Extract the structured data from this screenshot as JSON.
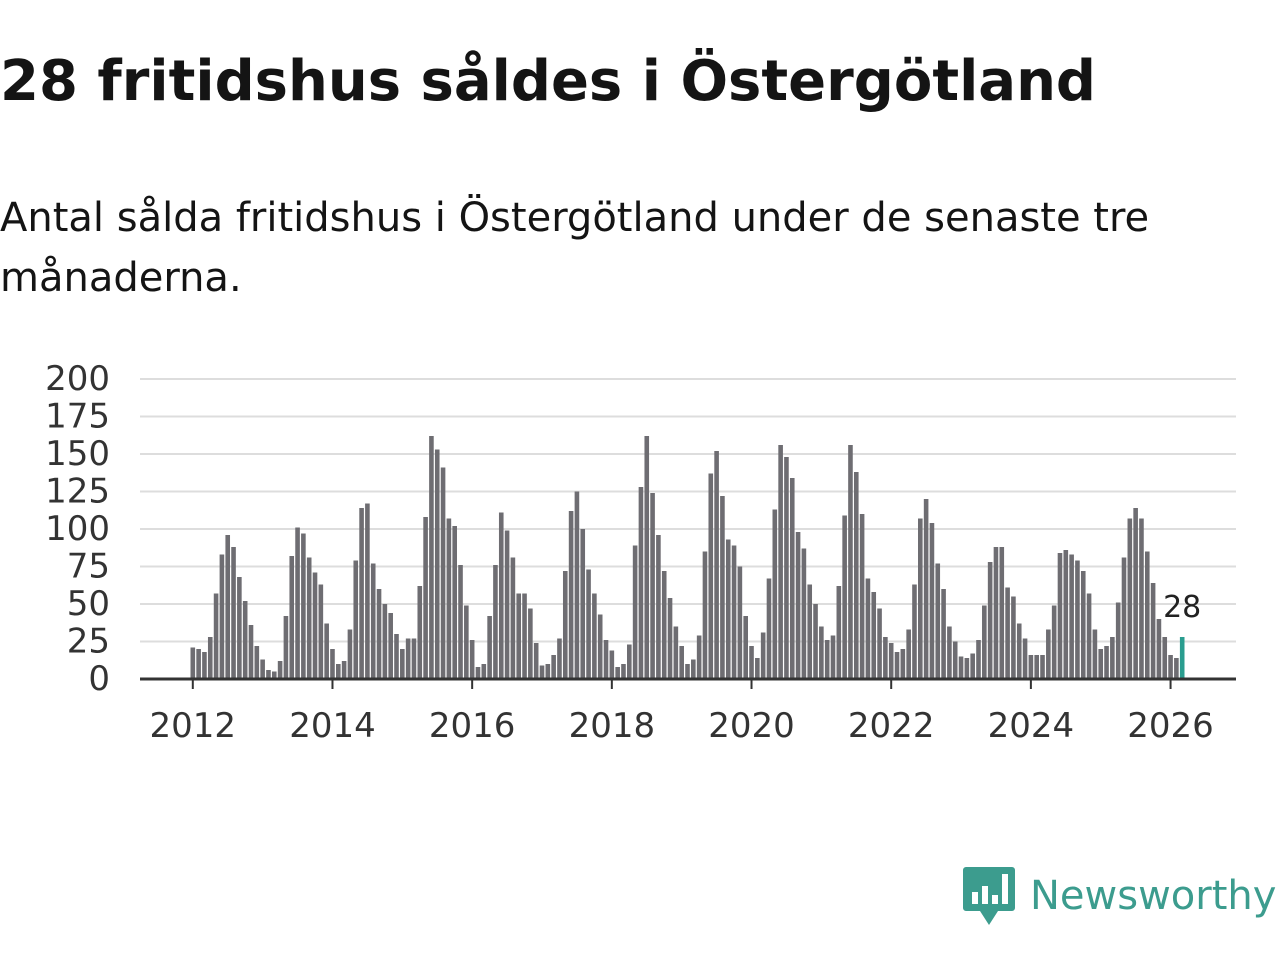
{
  "title": "28 fritidshus såldes i Östergötland",
  "subtitle": "Antal sålda fritidshus i Östergötland under de senaste tre månaderna.",
  "brand": {
    "name": "Newsworthy",
    "icon": "newsworthy-logo-icon",
    "color": "#3c9c8e"
  },
  "chart_data": {
    "type": "bar",
    "title": "28 fritidshus såldes i Östergötland",
    "xlabel": "",
    "ylabel": "",
    "ylim": [
      0,
      200
    ],
    "yticks": [
      0,
      25,
      50,
      75,
      100,
      125,
      150,
      175,
      200
    ],
    "ytick_labels": [
      "0",
      "25",
      "50",
      "75",
      "100",
      "125",
      "150",
      "175",
      "200"
    ],
    "xticks": [
      2012,
      2014,
      2016,
      2018,
      2020,
      2022,
      2024,
      2026
    ],
    "xtick_labels": [
      "2012",
      "2014",
      "2016",
      "2018",
      "2020",
      "2022",
      "2024",
      "2026"
    ],
    "grid": true,
    "first_period": "2012-01",
    "last_period": "2026-03",
    "bar_color": "#6e6d72",
    "highlight_color": "#2a9d8f",
    "highlight_index": 170,
    "annotation": {
      "index": 170,
      "label": "28"
    },
    "values": [
      21,
      20,
      18,
      28,
      57,
      83,
      96,
      88,
      68,
      52,
      36,
      22,
      13,
      6,
      5,
      12,
      42,
      82,
      101,
      97,
      81,
      71,
      63,
      37,
      20,
      10,
      12,
      33,
      79,
      114,
      117,
      77,
      60,
      50,
      44,
      30,
      20,
      27,
      27,
      62,
      108,
      162,
      153,
      141,
      107,
      102,
      76,
      49,
      26,
      8,
      10,
      42,
      76,
      111,
      99,
      81,
      57,
      57,
      47,
      24,
      9,
      10,
      16,
      27,
      72,
      112,
      125,
      100,
      73,
      57,
      43,
      26,
      19,
      8,
      10,
      23,
      89,
      128,
      162,
      124,
      96,
      72,
      54,
      35,
      22,
      10,
      13,
      29,
      85,
      137,
      152,
      122,
      93,
      89,
      75,
      42,
      22,
      14,
      31,
      67,
      113,
      156,
      148,
      134,
      98,
      87,
      63,
      50,
      35,
      26,
      29,
      62,
      109,
      156,
      138,
      110,
      67,
      58,
      47,
      28,
      24,
      18,
      20,
      33,
      63,
      107,
      120,
      104,
      77,
      60,
      35,
      25,
      15,
      14,
      17,
      26,
      49,
      78,
      88,
      88,
      61,
      55,
      37,
      27,
      16,
      16,
      16,
      33,
      49,
      84,
      86,
      83,
      79,
      72,
      57,
      33,
      20,
      22,
      28,
      51,
      81,
      107,
      114,
      107,
      85,
      64,
      40,
      28,
      16,
      14,
      28
    ]
  }
}
